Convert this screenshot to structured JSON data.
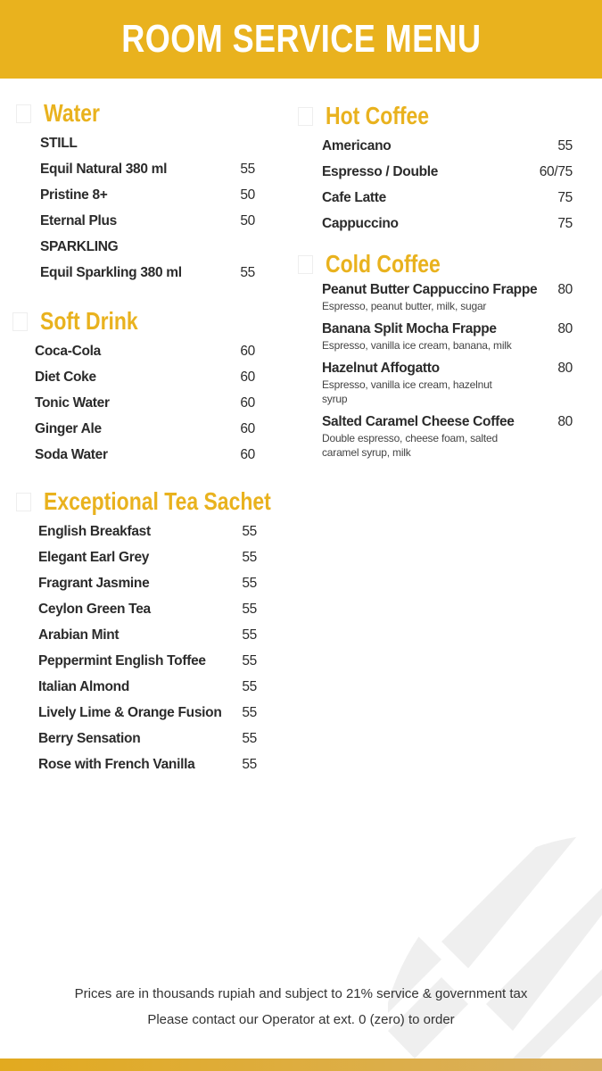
{
  "header": {
    "title": "ROOM SERVICE MENU"
  },
  "colors": {
    "accent": "#e9b21e",
    "text": "#2b2b2b"
  },
  "water": {
    "title": "Water",
    "rows": [
      {
        "name": "STILL",
        "price": ""
      },
      {
        "name": "Equil Natural 380 ml",
        "price": "55"
      },
      {
        "name": "Pristine 8+",
        "price": "50"
      },
      {
        "name": "Eternal Plus",
        "price": "50"
      },
      {
        "name": "SPARKLING",
        "price": ""
      },
      {
        "name": "Equil Sparkling 380 ml",
        "price": "55"
      }
    ]
  },
  "soft_drink": {
    "title": "Soft Drink",
    "rows": [
      {
        "name": "Coca-Cola",
        "price": "60"
      },
      {
        "name": "Diet Coke",
        "price": "60"
      },
      {
        "name": "Tonic Water",
        "price": "60"
      },
      {
        "name": "Ginger Ale",
        "price": "60"
      },
      {
        "name": "Soda Water",
        "price": "60"
      }
    ]
  },
  "tea": {
    "title": "Exceptional Tea Sachet",
    "rows": [
      {
        "name": "English Breakfast",
        "price": "55"
      },
      {
        "name": "Elegant Earl Grey",
        "price": "55"
      },
      {
        "name": "Fragrant Jasmine",
        "price": "55"
      },
      {
        "name": "Ceylon Green Tea",
        "price": "55"
      },
      {
        "name": "Arabian Mint",
        "price": "55"
      },
      {
        "name": "Peppermint English Toffee",
        "price": "55"
      },
      {
        "name": "Italian Almond",
        "price": "55"
      },
      {
        "name": "Lively Lime & Orange Fusion",
        "price": "55"
      },
      {
        "name": "Berry Sensation",
        "price": "55"
      },
      {
        "name": "Rose with French Vanilla",
        "price": "55"
      }
    ]
  },
  "hot_coffee": {
    "title": "Hot Coffee",
    "rows": [
      {
        "name": "Americano",
        "price": "55"
      },
      {
        "name": "Espresso / Double",
        "price": "60/75"
      },
      {
        "name": "Cafe Latte",
        "price": "75"
      },
      {
        "name": "Cappuccino",
        "price": "75"
      }
    ]
  },
  "cold_coffee": {
    "title": "Cold Coffee",
    "rows": [
      {
        "name": "Peanut Butter Cappuccino Frappe",
        "price": "80",
        "desc": "Espresso, peanut butter, milk, sugar"
      },
      {
        "name": "Banana Split Mocha Frappe",
        "price": "80",
        "desc": "Espresso, vanilla ice cream, banana, milk"
      },
      {
        "name": "Hazelnut Affogatto",
        "price": "80",
        "desc": "Espresso, vanilla ice cream, hazelnut syrup"
      },
      {
        "name": "Salted Caramel Cheese Coffee",
        "price": "80",
        "desc": "Double espresso, cheese foam, salted caramel syrup, milk"
      }
    ]
  },
  "footer": {
    "line1": "Prices are in thousands rupiah and subject to 21% service & government tax",
    "line2": "Please contact our Operator at ext. 0 (zero) to order"
  }
}
